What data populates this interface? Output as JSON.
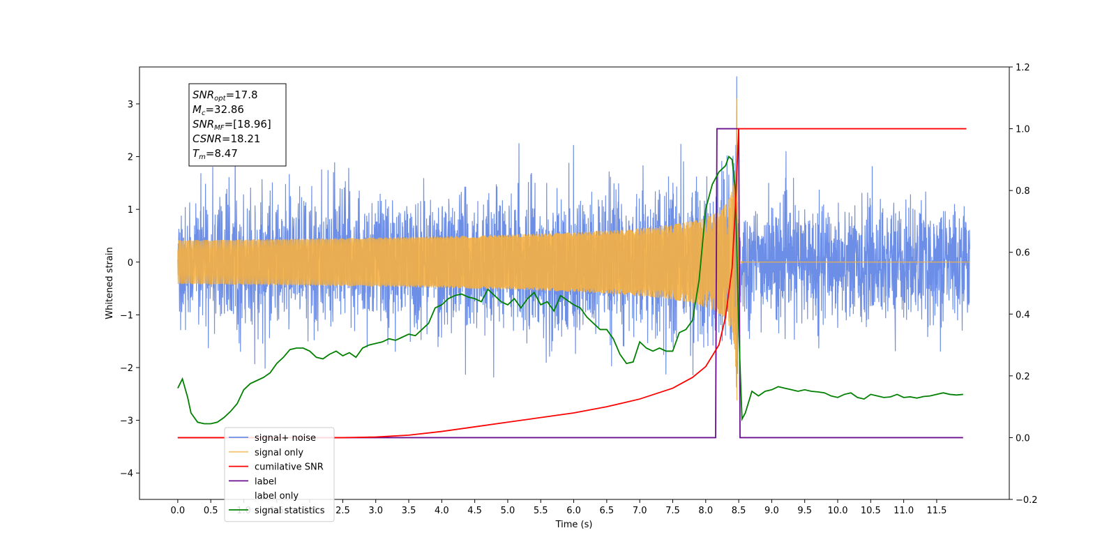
{
  "chart_data": {
    "type": "line",
    "xlabel": "Time (s)",
    "ylabel": "Whitened strain",
    "xlim": [
      -0.58,
      12.6
    ],
    "ylim": [
      -4.5,
      3.7
    ],
    "y2lim": [
      -0.2,
      1.2
    ],
    "x_ticks": [
      "0.0",
      "0.5",
      "1.0",
      "1.5",
      "2.0",
      "2.5",
      "3.0",
      "3.5",
      "4.0",
      "4.5",
      "5.0",
      "5.5",
      "6.0",
      "6.5",
      "7.0",
      "7.5",
      "8.0",
      "8.5",
      "9.0",
      "9.5",
      "10.0",
      "10.5",
      "11.0",
      "11.5"
    ],
    "y_ticks": [
      "3",
      "2",
      "1",
      "0",
      "−1",
      "−2",
      "−3",
      "−4"
    ],
    "y2_ticks": [
      "1.2",
      "1.0",
      "0.8",
      "0.6",
      "0.4",
      "0.2",
      "0.0",
      "−0.2"
    ],
    "legend_position": "lower-left",
    "info_box": {
      "lines": [
        {
          "main": "SNR",
          "sub": "opt",
          "rest": "=17.8"
        },
        {
          "main": "M",
          "sub": "c",
          "rest": "=32.86"
        },
        {
          "main": "SNR",
          "sub": "MF",
          "rest": "=[18.96]"
        },
        {
          "main": "CSNR",
          "sub": "",
          "rest": "=18.21"
        },
        {
          "main": "T",
          "sub": "m",
          "rest": "=8.47"
        }
      ]
    },
    "merger_time": 8.47,
    "duration": 12.0,
    "series": [
      {
        "name": "signal+ noise",
        "color": "#6d8ee6",
        "axis": "left",
        "noise_std": 0.55
      },
      {
        "name": "signal only",
        "color": "#f5b041",
        "axis": "left",
        "peak_amplitude": 3.1
      },
      {
        "name": "cumilative SNR",
        "color": "#ff0000",
        "axis": "right",
        "x": [
          0.0,
          2.5,
          3.0,
          3.5,
          4.0,
          4.5,
          5.0,
          5.5,
          6.0,
          6.5,
          7.0,
          7.5,
          7.8,
          8.0,
          8.2,
          8.3,
          8.4,
          8.45,
          8.5,
          11.95
        ],
        "y": [
          0.0,
          0.0,
          0.002,
          0.008,
          0.02,
          0.035,
          0.05,
          0.065,
          0.08,
          0.1,
          0.125,
          0.16,
          0.195,
          0.23,
          0.3,
          0.39,
          0.55,
          0.75,
          1.0,
          1.0
        ]
      },
      {
        "name": "label",
        "color": "#6a0f8e",
        "axis": "right",
        "x": [
          0.0,
          8.15,
          8.17,
          8.5,
          8.52,
          11.9
        ],
        "y": [
          0.0,
          0.0,
          1.0,
          1.0,
          0.0,
          0.0
        ]
      },
      {
        "name": "label only",
        "color": "#ffffff",
        "axis": "right",
        "x": [],
        "y": []
      },
      {
        "name": "signal statistics",
        "color": "#008000",
        "axis": "right",
        "x": [
          0.0,
          0.07,
          0.15,
          0.2,
          0.3,
          0.4,
          0.5,
          0.6,
          0.7,
          0.8,
          0.9,
          1.0,
          1.1,
          1.2,
          1.3,
          1.4,
          1.5,
          1.6,
          1.7,
          1.8,
          1.9,
          2.0,
          2.1,
          2.2,
          2.3,
          2.4,
          2.5,
          2.6,
          2.7,
          2.8,
          2.9,
          3.0,
          3.1,
          3.2,
          3.3,
          3.4,
          3.5,
          3.6,
          3.7,
          3.8,
          3.9,
          4.0,
          4.1,
          4.2,
          4.3,
          4.4,
          4.5,
          4.6,
          4.7,
          4.8,
          4.9,
          5.0,
          5.1,
          5.2,
          5.3,
          5.4,
          5.5,
          5.6,
          5.7,
          5.8,
          5.9,
          6.0,
          6.1,
          6.2,
          6.3,
          6.4,
          6.5,
          6.6,
          6.7,
          6.8,
          6.9,
          7.0,
          7.1,
          7.2,
          7.3,
          7.4,
          7.5,
          7.6,
          7.7,
          7.8,
          7.9,
          8.0,
          8.1,
          8.2,
          8.3,
          8.35,
          8.4,
          8.45,
          8.5,
          8.55,
          8.6,
          8.7,
          8.8,
          8.9,
          9.0,
          9.1,
          9.2,
          9.3,
          9.4,
          9.5,
          9.6,
          9.7,
          9.8,
          9.9,
          10.0,
          10.1,
          10.2,
          10.3,
          10.4,
          10.5,
          10.6,
          10.7,
          10.8,
          10.9,
          11.0,
          11.1,
          11.2,
          11.3,
          11.4,
          11.5,
          11.6,
          11.7,
          11.8,
          11.9
        ],
        "y": [
          0.16,
          0.19,
          0.13,
          0.08,
          0.05,
          0.045,
          0.045,
          0.05,
          0.065,
          0.085,
          0.11,
          0.155,
          0.175,
          0.185,
          0.195,
          0.21,
          0.24,
          0.26,
          0.285,
          0.29,
          0.29,
          0.28,
          0.26,
          0.255,
          0.27,
          0.28,
          0.265,
          0.275,
          0.26,
          0.29,
          0.3,
          0.305,
          0.31,
          0.32,
          0.315,
          0.325,
          0.335,
          0.33,
          0.35,
          0.37,
          0.42,
          0.43,
          0.45,
          0.46,
          0.465,
          0.455,
          0.45,
          0.44,
          0.48,
          0.46,
          0.44,
          0.43,
          0.45,
          0.42,
          0.45,
          0.47,
          0.43,
          0.44,
          0.41,
          0.46,
          0.445,
          0.43,
          0.42,
          0.39,
          0.37,
          0.35,
          0.35,
          0.32,
          0.27,
          0.24,
          0.245,
          0.31,
          0.29,
          0.28,
          0.29,
          0.28,
          0.28,
          0.34,
          0.35,
          0.38,
          0.51,
          0.74,
          0.82,
          0.86,
          0.88,
          0.91,
          0.9,
          0.8,
          0.35,
          0.06,
          0.08,
          0.15,
          0.135,
          0.15,
          0.155,
          0.165,
          0.16,
          0.155,
          0.15,
          0.155,
          0.15,
          0.148,
          0.145,
          0.135,
          0.13,
          0.14,
          0.145,
          0.13,
          0.125,
          0.14,
          0.135,
          0.13,
          0.132,
          0.14,
          0.13,
          0.132,
          0.128,
          0.133,
          0.135,
          0.14,
          0.145,
          0.14,
          0.138,
          0.14
        ]
      }
    ]
  }
}
